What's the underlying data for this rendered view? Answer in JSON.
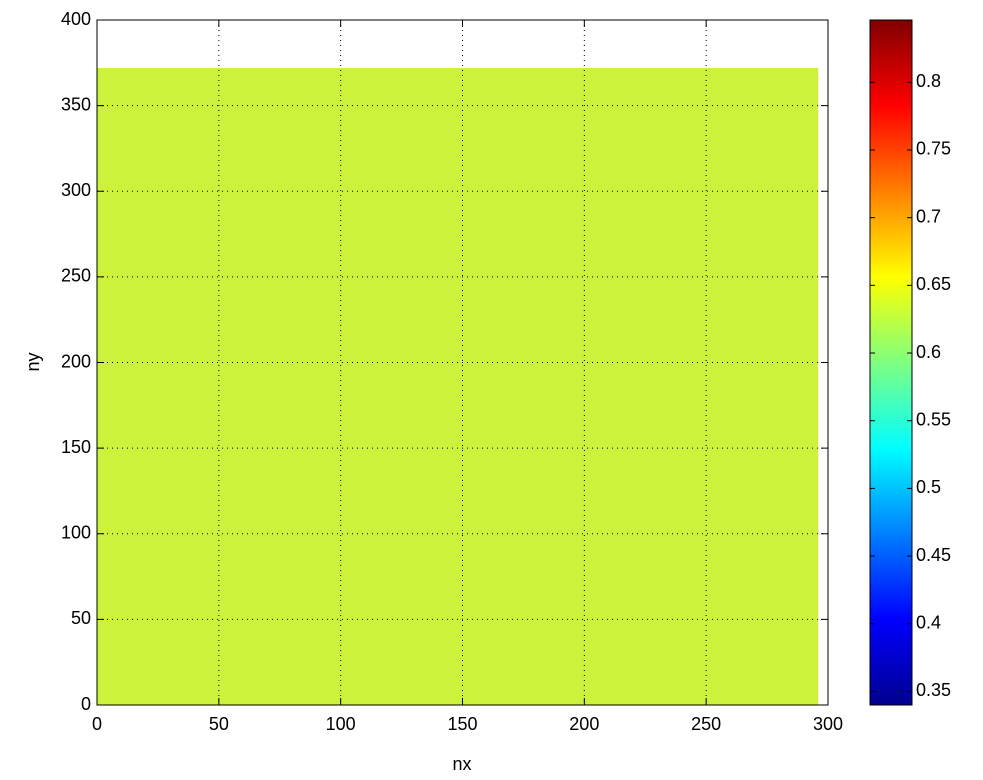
{
  "chart_data": {
    "type": "heatmap",
    "x_label": "nx",
    "y_label": "ny",
    "x": [
      0,
      296
    ],
    "y": [
      0,
      372
    ],
    "field_color": "#cdf23c",
    "xlim": [
      0,
      300
    ],
    "xticks": [
      0,
      50,
      100,
      150,
      200,
      250,
      300
    ],
    "ylim": [
      0,
      400
    ],
    "yticks": [
      0,
      50,
      100,
      150,
      200,
      250,
      300,
      350,
      400
    ],
    "grid": true,
    "colormap": "jet",
    "clim": [
      0.34,
      0.846
    ],
    "cticks": [
      0.35,
      0.4,
      0.45,
      0.5,
      0.55,
      0.6,
      0.65,
      0.7,
      0.75,
      0.8
    ]
  }
}
